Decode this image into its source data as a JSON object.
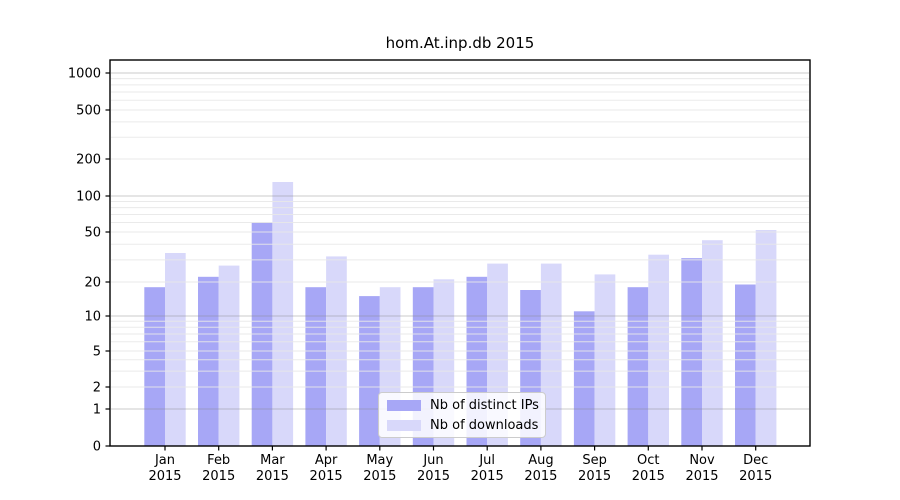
{
  "figure": {
    "background": "#ffffff"
  },
  "chart_data": {
    "type": "bar",
    "title": "hom.At.inp.db 2015",
    "xlabel": "",
    "ylabel": "",
    "categories": [
      "Jan 2015",
      "Feb 2015",
      "Mar 2015",
      "Apr 2015",
      "May 2015",
      "Jun 2015",
      "Jul 2015",
      "Aug 2015",
      "Sep 2015",
      "Oct 2015",
      "Nov 2015",
      "Dec 2015"
    ],
    "months": [
      "Jan",
      "Feb",
      "Mar",
      "Apr",
      "May",
      "Jun",
      "Jul",
      "Aug",
      "Sep",
      "Oct",
      "Nov",
      "Dec"
    ],
    "year": "2015",
    "series": [
      {
        "name": "Nb of distinct IPs",
        "color": "#a7a7f6",
        "values": [
          18,
          22,
          60,
          18,
          15,
          18,
          22,
          17,
          11,
          18,
          31,
          19
        ]
      },
      {
        "name": "Nb of downloads",
        "color": "#d8d8fa",
        "values": [
          34,
          27,
          130,
          32,
          18,
          21,
          28,
          28,
          23,
          33,
          43,
          52
        ]
      }
    ],
    "yticks": [
      0,
      1,
      2,
      5,
      10,
      20,
      50,
      100,
      200,
      500,
      1000
    ],
    "ylim": [
      0,
      1400
    ],
    "yscale": "symlog",
    "grid": true,
    "legend_position": "lower center inside plot",
    "colors": {
      "major_grid": "#c6c6c6",
      "minor_grid": "#ededed",
      "axis": "#000000",
      "text": "#000000"
    }
  }
}
